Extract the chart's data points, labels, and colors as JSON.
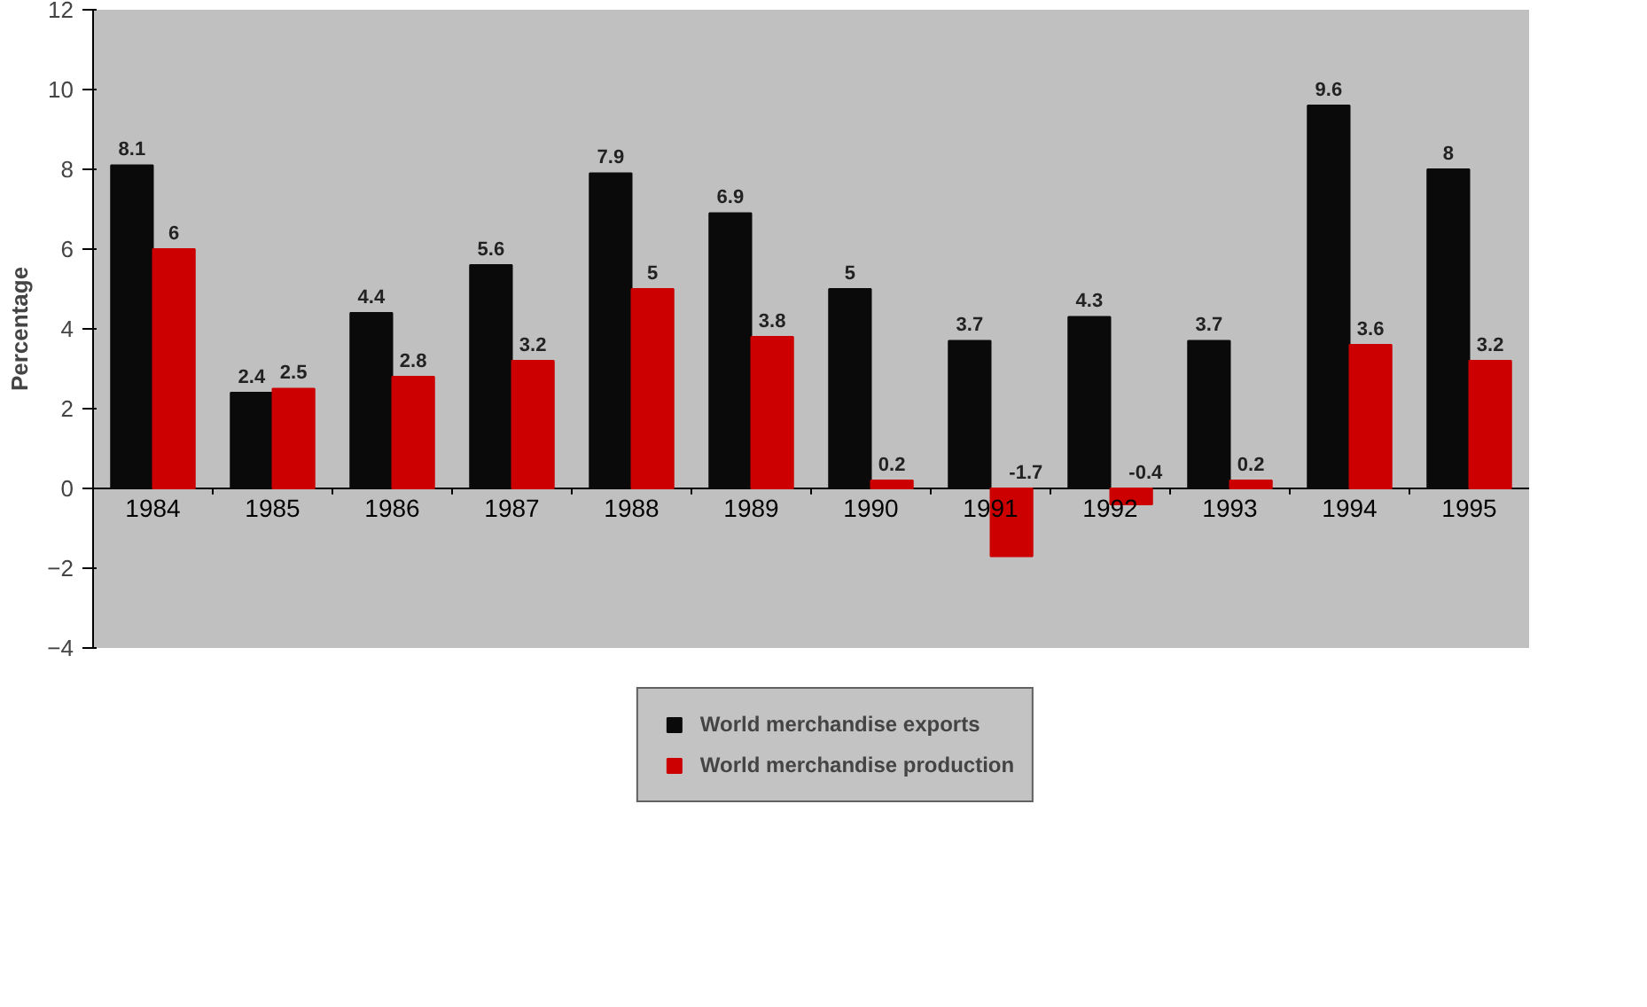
{
  "chart_data": {
    "type": "bar",
    "ylabel": "Percentage",
    "categories": [
      "1984",
      "1985",
      "1986",
      "1987",
      "1988",
      "1989",
      "1990",
      "1991",
      "1992",
      "1993",
      "1994",
      "1995"
    ],
    "series": [
      {
        "name": "World merchandise exports",
        "color": "#0a0a0a",
        "values": [
          8.1,
          2.4,
          4.4,
          5.6,
          7.9,
          6.9,
          5,
          3.7,
          4.3,
          3.7,
          9.6,
          8
        ]
      },
      {
        "name": "World merchandise production",
        "color": "#cc0000",
        "values": [
          6,
          2.5,
          2.8,
          3.2,
          5,
          3.8,
          0.2,
          -1.7,
          -0.4,
          0.2,
          3.6,
          3.2
        ]
      }
    ],
    "ylim": [
      -4,
      12
    ],
    "yticks": [
      -4,
      -2,
      0,
      2,
      4,
      6,
      8,
      10,
      12
    ],
    "grid": false,
    "legend": "bottom",
    "data_labels": true
  }
}
